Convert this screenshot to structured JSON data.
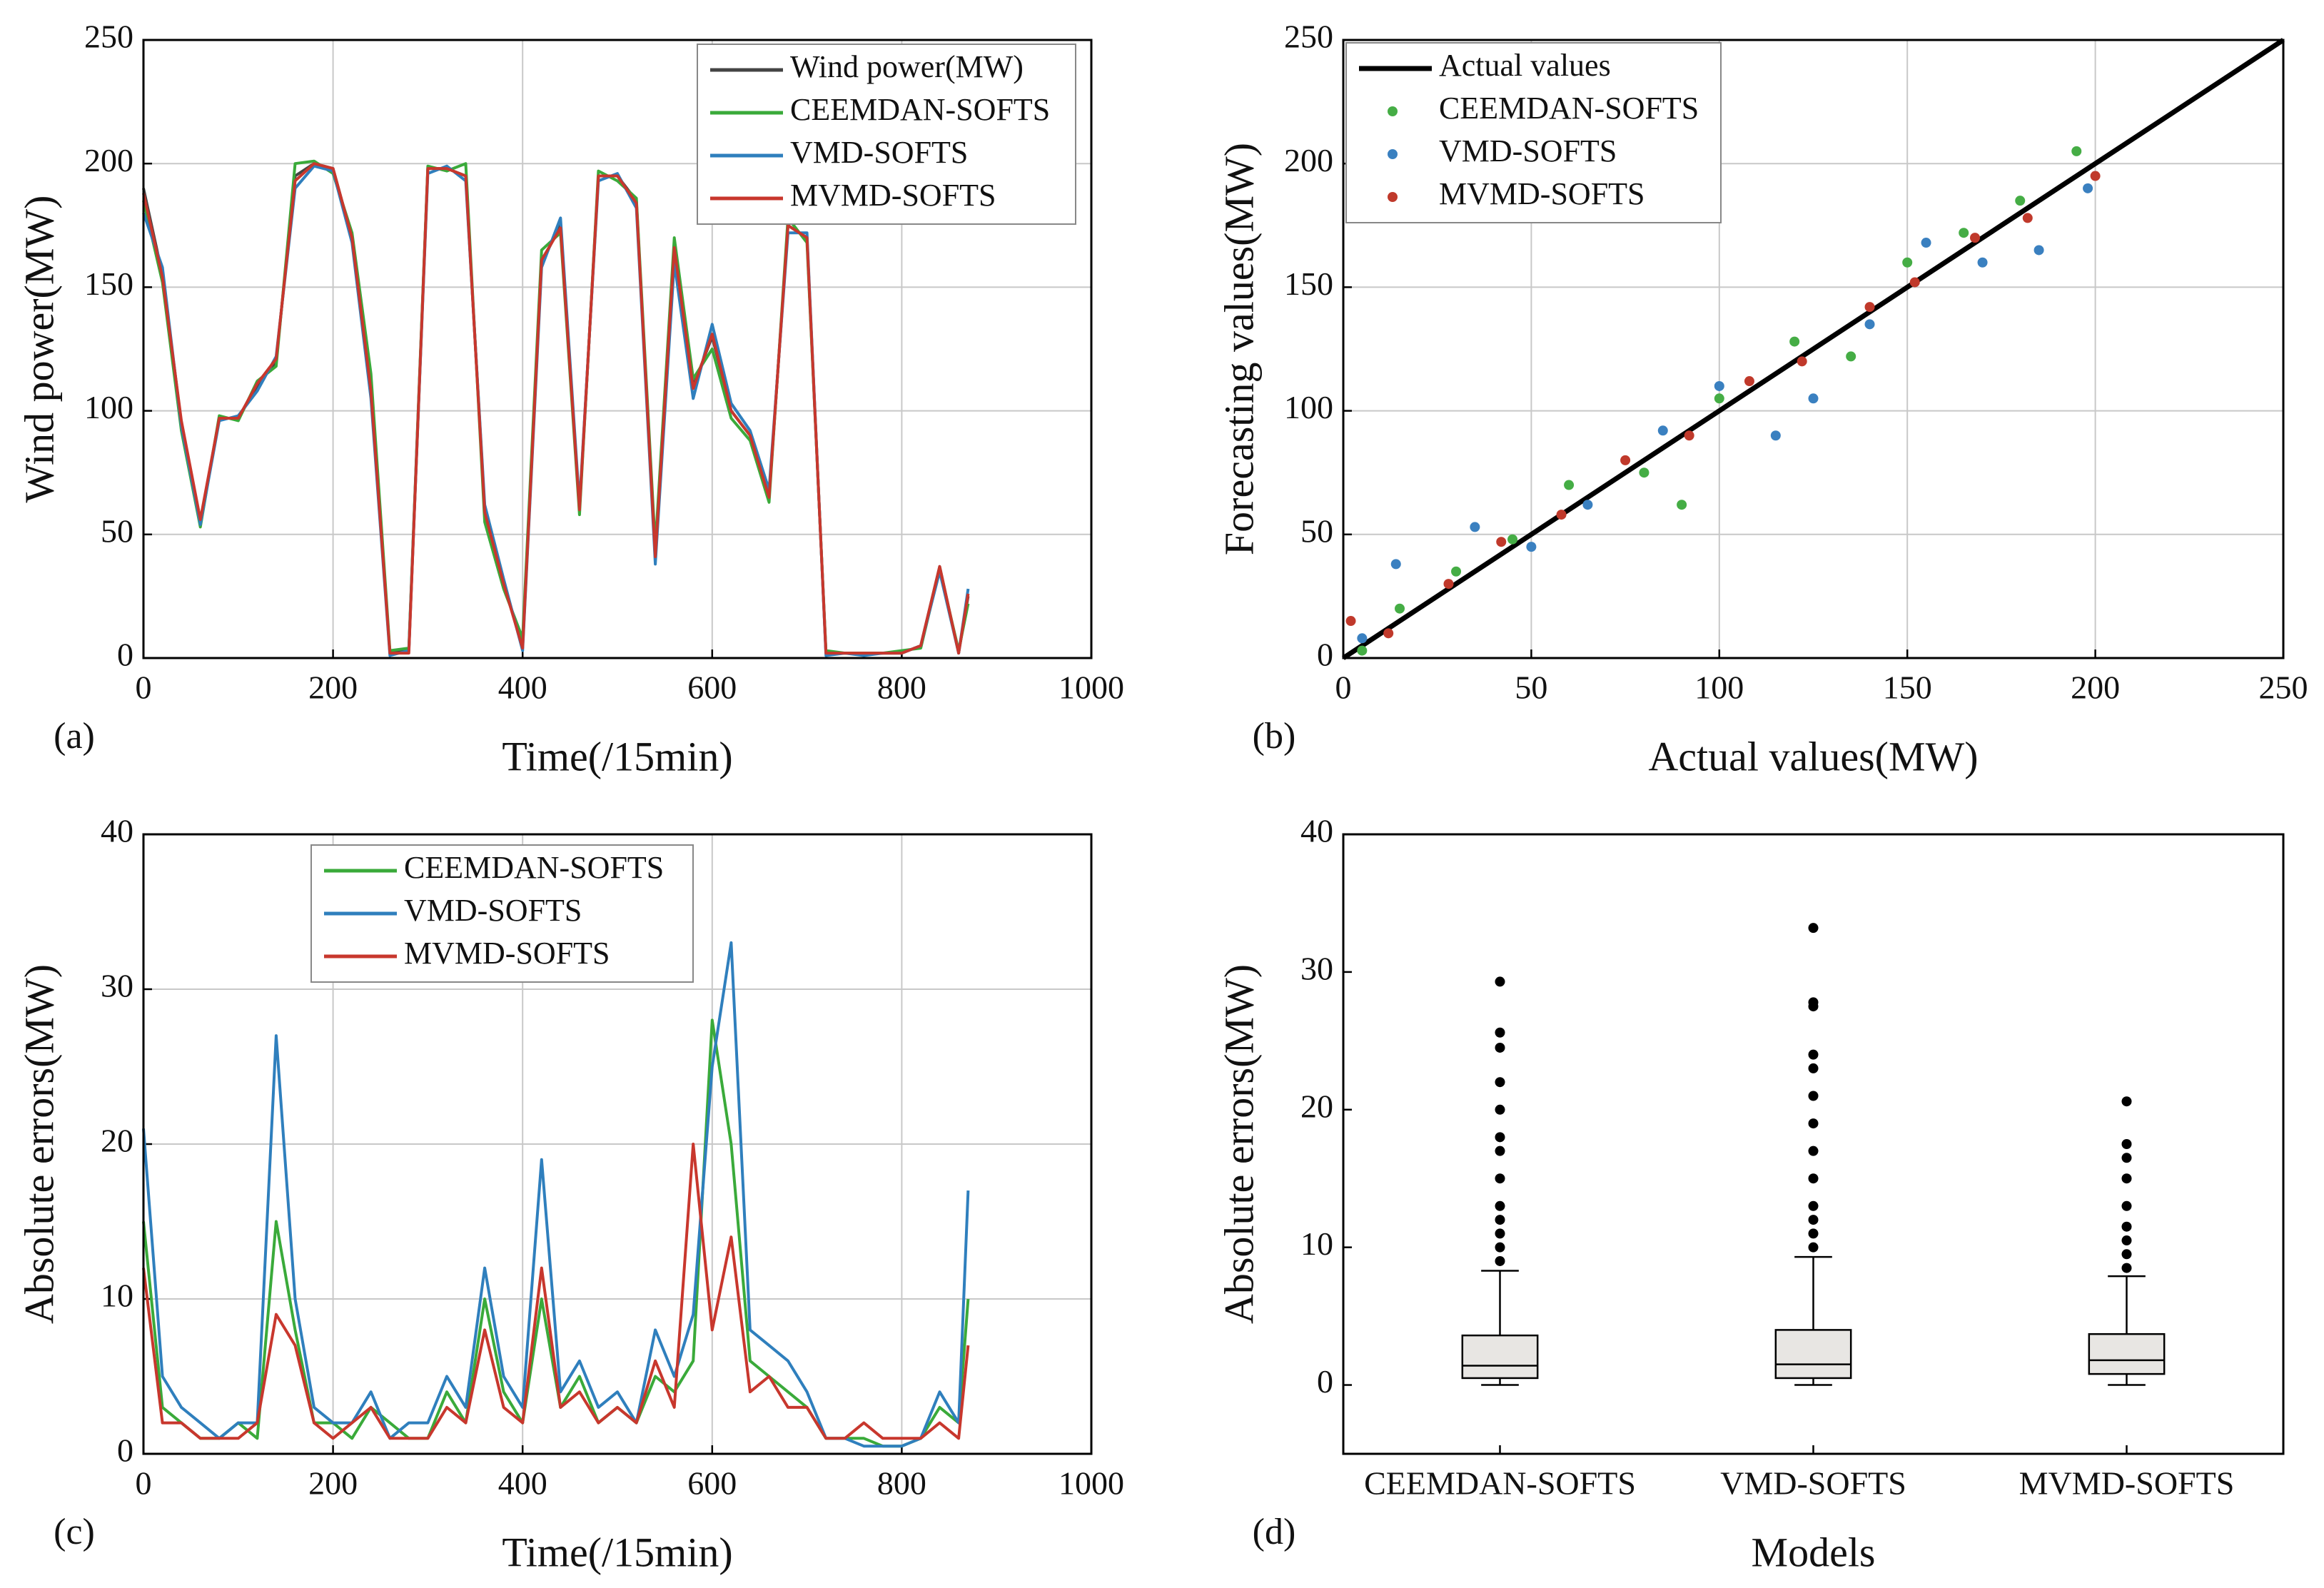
{
  "chart_data": [
    {
      "type": "line",
      "label": "(a)",
      "xlabel": "Time(/15min)",
      "ylabel": "Wind power(MW)",
      "x": [
        0,
        20,
        40,
        60,
        80,
        100,
        120,
        140,
        160,
        180,
        200,
        220,
        240,
        260,
        280,
        300,
        320,
        340,
        360,
        380,
        400,
        420,
        440,
        460,
        480,
        500,
        520,
        540,
        560,
        580,
        600,
        620,
        640,
        660,
        680,
        700,
        720,
        740,
        760,
        780,
        800,
        820,
        840,
        860,
        870
      ],
      "series": [
        {
          "name": "Wind power(MW)",
          "color": "#444444",
          "values": [
            190,
            155,
            95,
            55,
            97,
            97,
            110,
            120,
            195,
            200,
            198,
            170,
            110,
            2,
            3,
            198,
            198,
            195,
            60,
            30,
            5,
            160,
            175,
            60,
            195,
            195,
            185,
            40,
            165,
            110,
            130,
            100,
            90,
            65,
            175,
            170,
            2,
            2,
            2,
            2,
            2,
            5,
            37,
            2,
            25
          ]
        },
        {
          "name": "CEEMDAN-SOFTS",
          "color": "#3aaa3a",
          "values": [
            185,
            152,
            92,
            53,
            98,
            96,
            112,
            118,
            200,
            201,
            196,
            172,
            115,
            3,
            4,
            199,
            197,
            200,
            55,
            28,
            8,
            165,
            172,
            58,
            197,
            193,
            186,
            45,
            170,
            113,
            125,
            97,
            88,
            63,
            178,
            168,
            3,
            2,
            2,
            2,
            3,
            4,
            36,
            3,
            22
          ]
        },
        {
          "name": "VMD-SOFTS",
          "color": "#2f7fbd",
          "values": [
            180,
            158,
            94,
            54,
            96,
            98,
            108,
            122,
            190,
            199,
            197,
            168,
            105,
            1,
            3,
            196,
            199,
            193,
            62,
            32,
            3,
            158,
            178,
            62,
            193,
            196,
            182,
            38,
            160,
            105,
            135,
            103,
            92,
            68,
            172,
            172,
            1,
            2,
            1,
            2,
            2,
            5,
            35,
            2,
            28
          ]
        },
        {
          "name": "MVMD-SOFTS",
          "color": "#c8372d",
          "values": [
            188,
            154,
            96,
            56,
            97,
            97,
            111,
            121,
            193,
            200,
            198,
            170,
            108,
            2,
            2,
            198,
            198,
            195,
            59,
            30,
            4,
            161,
            174,
            60,
            195,
            195,
            184,
            41,
            166,
            109,
            131,
            100,
            90,
            65,
            175,
            170,
            2,
            2,
            2,
            2,
            2,
            5,
            37,
            2,
            26
          ]
        }
      ],
      "xlim": [
        0,
        1000
      ],
      "xticks": [
        0,
        200,
        400,
        600,
        800,
        1000
      ],
      "ylim": [
        0,
        250
      ],
      "yticks": [
        0,
        50,
        100,
        150,
        200,
        250
      ],
      "grid": true,
      "legend": "upper right"
    },
    {
      "type": "scatter",
      "label": "(b)",
      "xlabel": "Actual values(MW)",
      "ylabel": "Forecasting values(MW)",
      "series": [
        {
          "name": "Actual values",
          "color": "#000000",
          "mark": "line",
          "x": [
            0,
            250
          ],
          "values": [
            0,
            250
          ]
        },
        {
          "name": "CEEMDAN-SOFTS",
          "color": "#45ad45",
          "mark": "points",
          "x": [
            5,
            15,
            30,
            45,
            60,
            80,
            90,
            100,
            120,
            135,
            150,
            165,
            180,
            195
          ],
          "values": [
            3,
            20,
            35,
            48,
            70,
            75,
            62,
            105,
            128,
            122,
            160,
            172,
            185,
            205
          ]
        },
        {
          "name": "VMD-SOFTS",
          "color": "#3a80c0",
          "mark": "points",
          "x": [
            5,
            14,
            35,
            50,
            65,
            85,
            100,
            115,
            125,
            140,
            155,
            170,
            185,
            198
          ],
          "values": [
            8,
            38,
            53,
            45,
            62,
            92,
            110,
            90,
            105,
            135,
            168,
            160,
            165,
            190
          ]
        },
        {
          "name": "MVMD-SOFTS",
          "color": "#c0392b",
          "mark": "points",
          "x": [
            2,
            12,
            28,
            42,
            58,
            75,
            92,
            108,
            122,
            140,
            152,
            168,
            182,
            200
          ],
          "values": [
            15,
            10,
            30,
            47,
            58,
            80,
            90,
            112,
            120,
            142,
            152,
            170,
            178,
            195
          ]
        }
      ],
      "xlim": [
        0,
        250
      ],
      "xticks": [
        0,
        50,
        100,
        150,
        200,
        250
      ],
      "ylim": [
        0,
        250
      ],
      "yticks": [
        0,
        50,
        100,
        150,
        200,
        250
      ],
      "grid": true,
      "legend": "upper left"
    },
    {
      "type": "line",
      "label": "(c)",
      "xlabel": "Time(/15min)",
      "ylabel": "Absolute errors(MW)",
      "x": [
        0,
        20,
        40,
        60,
        80,
        100,
        120,
        140,
        160,
        180,
        200,
        220,
        240,
        260,
        280,
        300,
        320,
        340,
        360,
        380,
        400,
        420,
        440,
        460,
        480,
        500,
        520,
        540,
        560,
        580,
        600,
        620,
        640,
        660,
        680,
        700,
        720,
        740,
        760,
        780,
        800,
        820,
        840,
        860,
        870
      ],
      "series": [
        {
          "name": "CEEMDAN-SOFTS",
          "color": "#3aaa3a",
          "values": [
            15,
            3,
            2,
            1,
            1,
            2,
            1,
            15,
            8,
            2,
            2,
            1,
            3,
            2,
            1,
            1,
            4,
            2,
            10,
            4,
            2,
            10,
            3,
            5,
            2,
            3,
            2,
            5,
            4,
            6,
            28,
            20,
            6,
            5,
            4,
            3,
            1,
            1,
            1,
            0.5,
            0.5,
            1,
            3,
            2,
            10
          ]
        },
        {
          "name": "VMD-SOFTS",
          "color": "#2f7fbd",
          "values": [
            21,
            5,
            3,
            2,
            1,
            2,
            2,
            27,
            10,
            3,
            2,
            2,
            4,
            1,
            2,
            2,
            5,
            3,
            12,
            5,
            3,
            19,
            4,
            6,
            3,
            4,
            2,
            8,
            5,
            9,
            25,
            33,
            8,
            7,
            6,
            4,
            1,
            1,
            0.5,
            0.5,
            0.5,
            1,
            4,
            2,
            17
          ]
        },
        {
          "name": "MVMD-SOFTS",
          "color": "#c8372d",
          "values": [
            12,
            2,
            2,
            1,
            1,
            1,
            2,
            9,
            7,
            2,
            1,
            2,
            3,
            1,
            1,
            1,
            3,
            2,
            8,
            3,
            2,
            12,
            3,
            4,
            2,
            3,
            2,
            6,
            3,
            20,
            8,
            14,
            4,
            5,
            3,
            3,
            1,
            1,
            2,
            1,
            1,
            1,
            2,
            1,
            7
          ]
        }
      ],
      "xlim": [
        0,
        1000
      ],
      "xticks": [
        0,
        200,
        400,
        600,
        800,
        1000
      ],
      "ylim": [
        0,
        40
      ],
      "yticks": [
        0,
        10,
        20,
        30,
        40
      ],
      "grid": true,
      "legend": "upper left"
    },
    {
      "type": "box",
      "label": "(d)",
      "xlabel": "Models",
      "ylabel": "Absolute errors(MW)",
      "categories": [
        "CEEMDAN-SOFTS",
        "VMD-SOFTS",
        "MVMD-SOFTS"
      ],
      "boxes": [
        {
          "min": 0,
          "q1": 0.5,
          "median": 1.4,
          "q3": 3.6,
          "max": 8.3,
          "outliers": [
            9,
            10,
            11,
            12,
            13,
            15,
            17,
            18,
            20,
            22,
            24.5,
            25.6,
            29.3
          ]
        },
        {
          "min": 0,
          "q1": 0.5,
          "median": 1.5,
          "q3": 4.0,
          "max": 9.3,
          "outliers": [
            10,
            11,
            12,
            13,
            15,
            17,
            19,
            21,
            23,
            24,
            27.5,
            27.8,
            33.2
          ]
        },
        {
          "min": 0,
          "q1": 0.8,
          "median": 1.8,
          "q3": 3.7,
          "max": 7.9,
          "outliers": [
            8.5,
            9.5,
            10.5,
            11.5,
            13,
            15,
            16.5,
            17.5,
            20.6
          ]
        }
      ],
      "color": "#e8e6e3",
      "ylim": [
        -5,
        40
      ],
      "yticks": [
        0,
        10,
        20,
        30,
        40
      ],
      "grid": false
    }
  ]
}
